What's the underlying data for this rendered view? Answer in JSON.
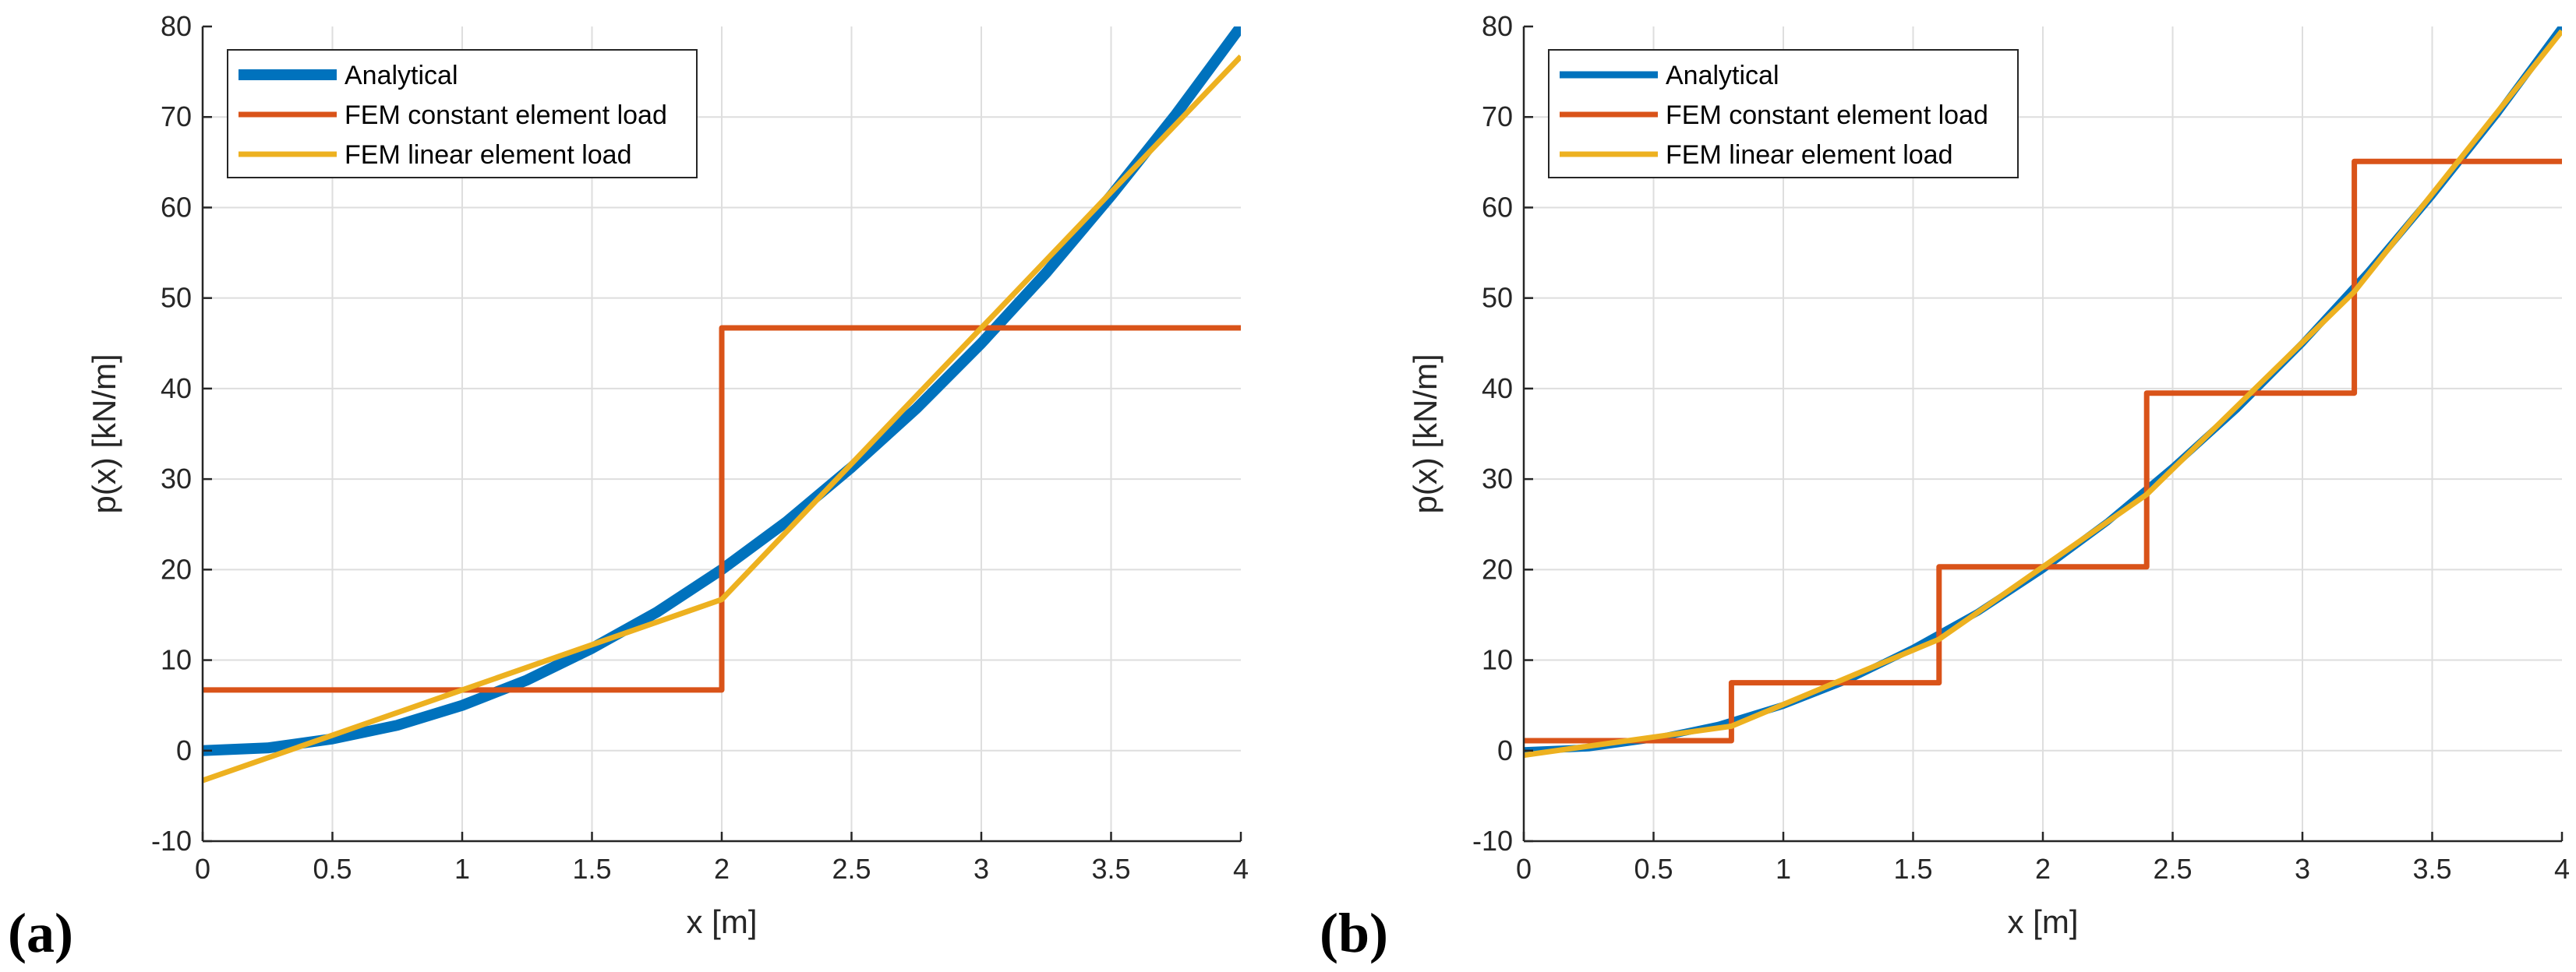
{
  "colors": {
    "analytical": "#0072BD",
    "fem_constant": "#D95319",
    "fem_linear": "#EDB120",
    "grid": "#dedede",
    "axis": "#262626"
  },
  "chart_data": [
    {
      "type": "line",
      "panel_label": "(a)",
      "xlabel": "x [m]",
      "ylabel": "p(x) [kN/m]",
      "xlim": [
        0,
        4
      ],
      "ylim": [
        -10,
        80
      ],
      "xticks": [
        0,
        0.5,
        1,
        1.5,
        2,
        2.5,
        3,
        3.5,
        4
      ],
      "xtick_labels": [
        "0",
        "0.5",
        "1",
        "1.5",
        "2",
        "2.5",
        "3",
        "3.5",
        "4"
      ],
      "yticks": [
        -10,
        0,
        10,
        20,
        30,
        40,
        50,
        60,
        70,
        80
      ],
      "ytick_labels": [
        "-10",
        "0",
        "10",
        "20",
        "30",
        "40",
        "50",
        "60",
        "70",
        "80"
      ],
      "grid": true,
      "legend_position": "top-left",
      "series": [
        {
          "name": "Analytical",
          "color": "#0072BD",
          "x": [
            0,
            0.25,
            0.5,
            0.75,
            1,
            1.25,
            1.5,
            1.75,
            2,
            2.25,
            2.5,
            2.75,
            3,
            3.25,
            3.5,
            3.75,
            4
          ],
          "y": [
            0,
            0.3,
            1.3,
            2.8,
            5,
            7.8,
            11.3,
            15.3,
            20,
            25.3,
            31.3,
            37.8,
            45,
            52.8,
            61.3,
            70.3,
            80
          ]
        },
        {
          "name": "FEM constant element load",
          "color": "#D95319",
          "x": [
            0,
            2,
            2,
            4
          ],
          "y": [
            6.7,
            6.7,
            46.7,
            46.7
          ]
        },
        {
          "name": "FEM linear element load",
          "color": "#EDB120",
          "x": [
            0,
            2,
            4
          ],
          "y": [
            -3.3,
            16.7,
            76.7
          ]
        }
      ]
    },
    {
      "type": "line",
      "panel_label": "(b)",
      "xlabel": "x [m]",
      "ylabel": "p(x) [kN/m]",
      "xlim": [
        0,
        4
      ],
      "ylim": [
        -10,
        80
      ],
      "xticks": [
        0,
        0.5,
        1,
        1.5,
        2,
        2.5,
        3,
        3.5,
        4
      ],
      "xtick_labels": [
        "0",
        "0.5",
        "1",
        "1.5",
        "2",
        "2.5",
        "3",
        "3.5",
        "4"
      ],
      "yticks": [
        -10,
        0,
        10,
        20,
        30,
        40,
        50,
        60,
        70,
        80
      ],
      "ytick_labels": [
        "-10",
        "0",
        "10",
        "20",
        "30",
        "40",
        "50",
        "60",
        "70",
        "80"
      ],
      "grid": true,
      "legend_position": "top-left",
      "series": [
        {
          "name": "Analytical",
          "color": "#0072BD",
          "x": [
            0,
            0.25,
            0.5,
            0.75,
            1,
            1.25,
            1.5,
            1.75,
            2,
            2.25,
            2.5,
            2.75,
            3,
            3.25,
            3.5,
            3.75,
            4
          ],
          "y": [
            0,
            0.3,
            1.3,
            2.8,
            5,
            7.8,
            11.3,
            15.3,
            20,
            25.3,
            31.3,
            37.8,
            45,
            52.8,
            61.3,
            70.3,
            80
          ]
        },
        {
          "name": "FEM constant element load",
          "color": "#D95319",
          "x": [
            0,
            0.8,
            0.8,
            1.6,
            1.6,
            2.4,
            2.4,
            3.2,
            3.2,
            4
          ],
          "y": [
            1.1,
            1.1,
            7.5,
            7.5,
            20.3,
            20.3,
            39.5,
            39.5,
            65.1,
            65.1
          ]
        },
        {
          "name": "FEM linear element load",
          "color": "#EDB120",
          "x": [
            0,
            0.8,
            1.6,
            2.4,
            3.2,
            4
          ],
          "y": [
            -0.5,
            2.7,
            12.3,
            28.3,
            50.7,
            79.5
          ]
        }
      ]
    }
  ]
}
